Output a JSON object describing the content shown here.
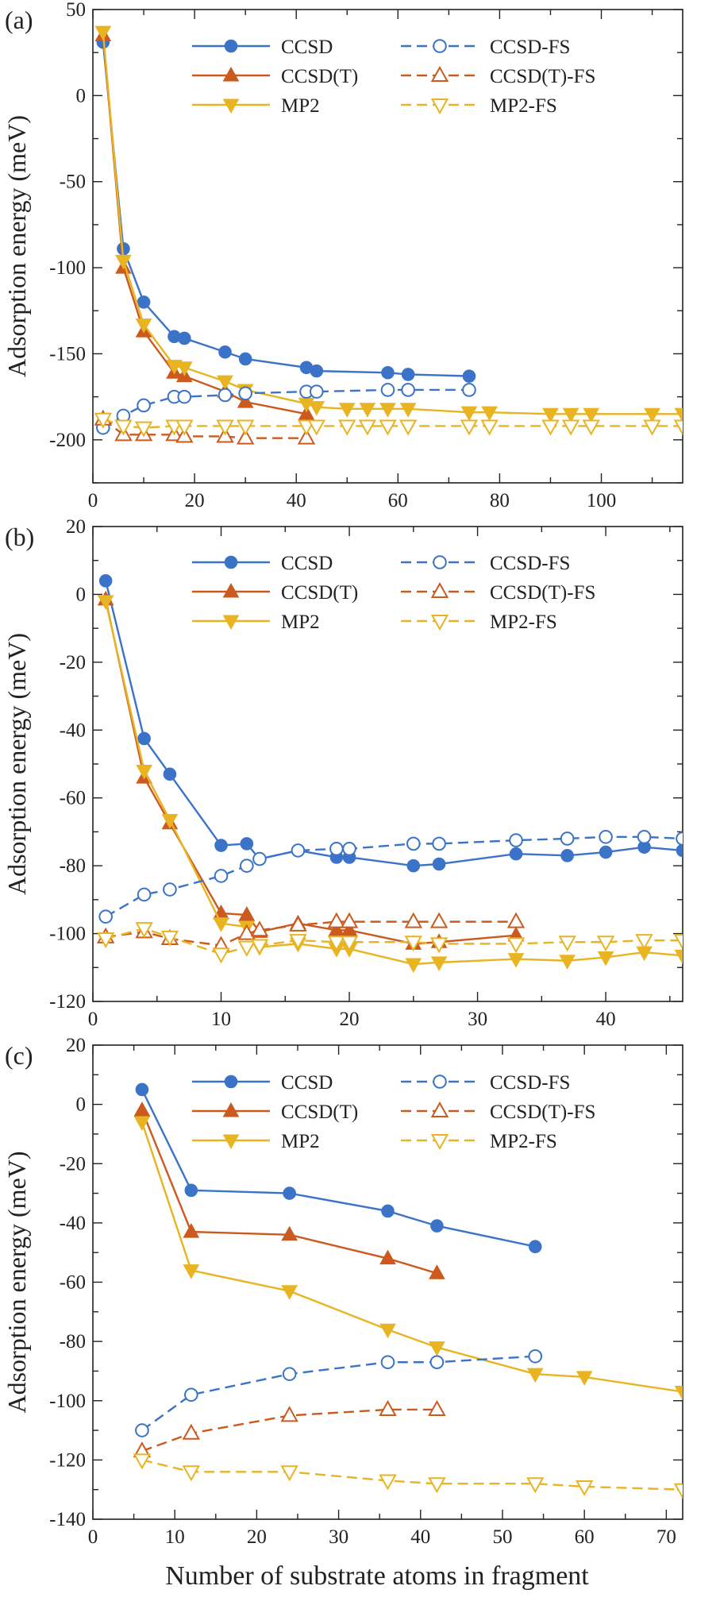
{
  "colors": {
    "ccsd": "#3b73c8",
    "ccsdt": "#cc5a1e",
    "mp2": "#e8b422",
    "axis": "#222222"
  },
  "xlabel": "Number of substrate atoms in fragment",
  "chart_data": [
    {
      "type": "line",
      "panel_label": "(a)",
      "ylabel": "Adsorption energy (meV)",
      "xlim": [
        0,
        116
      ],
      "ylim": [
        -225,
        50
      ],
      "xticks": [
        0,
        20,
        40,
        60,
        80,
        100
      ],
      "yticks": [
        -200,
        -150,
        -100,
        -50,
        0,
        50
      ],
      "legend": "top-right",
      "series": [
        {
          "name": "CCSD",
          "key": "ccsd",
          "marker": "circle",
          "filled": true,
          "dashed": false,
          "x": [
            2,
            6,
            10,
            16,
            18,
            26,
            30,
            42,
            44,
            58,
            62,
            74
          ],
          "y": [
            31,
            -89,
            -120,
            -140,
            -141,
            -149,
            -153,
            -158,
            -160,
            -161,
            -162,
            -163
          ]
        },
        {
          "name": "CCSD(T)",
          "key": "ccsdt",
          "marker": "tri-up",
          "filled": true,
          "dashed": false,
          "x": [
            2,
            6,
            10,
            16,
            18,
            26,
            30,
            42
          ],
          "y": [
            35,
            -100,
            -137,
            -161,
            -163,
            -172,
            -178,
            -185
          ]
        },
        {
          "name": "MP2",
          "key": "mp2",
          "marker": "tri-down",
          "filled": true,
          "dashed": false,
          "x": [
            2,
            6,
            10,
            16,
            18,
            26,
            30,
            42,
            44,
            50,
            54,
            58,
            62,
            74,
            78,
            90,
            94,
            98,
            110,
            116
          ],
          "y": [
            37,
            -96,
            -133,
            -157,
            -158,
            -166,
            -171,
            -179,
            -181,
            -182,
            -182,
            -182,
            -182,
            -184,
            -184,
            -185,
            -185,
            -185,
            -185,
            -185
          ]
        },
        {
          "name": "CCSD-FS",
          "key": "ccsd",
          "marker": "circle",
          "filled": false,
          "dashed": true,
          "x": [
            2,
            6,
            10,
            16,
            18,
            26,
            30,
            42,
            44,
            58,
            62,
            74
          ],
          "y": [
            -193,
            -186,
            -180,
            -175,
            -175,
            -174,
            -173,
            -172,
            -172,
            -171,
            -171,
            -171
          ]
        },
        {
          "name": "CCSD(T)-FS",
          "key": "ccsdt",
          "marker": "tri-up",
          "filled": false,
          "dashed": true,
          "x": [
            2,
            6,
            10,
            16,
            18,
            26,
            30,
            42
          ],
          "y": [
            -188,
            -197,
            -197,
            -197,
            -198,
            -198,
            -199,
            -199
          ]
        },
        {
          "name": "MP2-FS",
          "key": "mp2",
          "marker": "tri-down",
          "filled": false,
          "dashed": true,
          "x": [
            2,
            6,
            10,
            16,
            18,
            26,
            30,
            42,
            44,
            50,
            54,
            58,
            62,
            74,
            78,
            90,
            94,
            98,
            110,
            116
          ],
          "y": [
            -188,
            -192,
            -193,
            -192,
            -192,
            -192,
            -192,
            -192,
            -192,
            -192,
            -192,
            -192,
            -192,
            -192,
            -192,
            -192,
            -192,
            -192,
            -192,
            -192
          ]
        }
      ]
    },
    {
      "type": "line",
      "panel_label": "(b)",
      "ylabel": "Adsorption energy (meV)",
      "xlim": [
        0,
        46
      ],
      "ylim": [
        -120,
        20
      ],
      "xticks": [
        0,
        10,
        20,
        30,
        40
      ],
      "yticks": [
        -120,
        -100,
        -80,
        -60,
        -40,
        -20,
        0,
        20
      ],
      "legend": "top-right",
      "series": [
        {
          "name": "CCSD",
          "key": "ccsd",
          "marker": "circle",
          "filled": true,
          "dashed": false,
          "x": [
            1,
            4,
            6,
            10,
            12,
            13,
            16,
            19,
            20,
            25,
            27,
            33,
            37,
            40,
            43,
            46
          ],
          "y": [
            4,
            -42.5,
            -53,
            -74,
            -73.5,
            -78,
            -75.5,
            -77.5,
            -77.5,
            -80,
            -79.5,
            -76.5,
            -77,
            -76,
            -74.5,
            -75.5
          ]
        },
        {
          "name": "CCSD(T)",
          "key": "ccsdt",
          "marker": "tri-up",
          "filled": true,
          "dashed": false,
          "x": [
            1,
            4,
            6,
            10,
            12,
            13,
            16,
            19,
            20,
            25,
            27,
            33
          ],
          "y": [
            -1.5,
            -54,
            -67.5,
            -94,
            -94.5,
            -99.5,
            -97,
            -99,
            -99,
            -103,
            -102.5,
            -100.5
          ]
        },
        {
          "name": "MP2",
          "key": "mp2",
          "marker": "tri-down",
          "filled": true,
          "dashed": false,
          "x": [
            1,
            4,
            6,
            10,
            12,
            13,
            16,
            19,
            20,
            25,
            27,
            33,
            37,
            40,
            43,
            46
          ],
          "y": [
            -2,
            -52,
            -66.5,
            -97,
            -98,
            -104,
            -103,
            -104.5,
            -104.5,
            -109,
            -108.5,
            -107.5,
            -108,
            -107,
            -105.5,
            -106.5
          ]
        },
        {
          "name": "CCSD-FS",
          "key": "ccsd",
          "marker": "circle",
          "filled": false,
          "dashed": true,
          "x": [
            1,
            4,
            6,
            10,
            12,
            13,
            16,
            19,
            20,
            25,
            27,
            33,
            37,
            40,
            43,
            46
          ],
          "y": [
            -95,
            -88.5,
            -87,
            -83,
            -80,
            -78,
            -75.5,
            -75,
            -75,
            -73.5,
            -73.5,
            -72.5,
            -72,
            -71.5,
            -71.5,
            -72
          ]
        },
        {
          "name": "CCSD(T)-FS",
          "key": "ccsdt",
          "marker": "tri-up",
          "filled": false,
          "dashed": true,
          "x": [
            1,
            4,
            6,
            10,
            12,
            13,
            16,
            19,
            20,
            25,
            27,
            33
          ],
          "y": [
            -101,
            -99.5,
            -101.5,
            -103.5,
            -100,
            -99,
            -97.5,
            -96.5,
            -96.5,
            -96.5,
            -96.5,
            -96.5
          ]
        },
        {
          "name": "MP2-FS",
          "key": "mp2",
          "marker": "tri-down",
          "filled": false,
          "dashed": true,
          "x": [
            1,
            4,
            6,
            10,
            12,
            13,
            16,
            19,
            20,
            25,
            27,
            33,
            37,
            40,
            43,
            46
          ],
          "y": [
            -101.5,
            -98.5,
            -101,
            -106,
            -104,
            -103.5,
            -102,
            -102.5,
            -102.5,
            -102.5,
            -103,
            -103,
            -102.5,
            -102.5,
            -102,
            -102
          ]
        }
      ]
    },
    {
      "type": "line",
      "panel_label": "(c)",
      "ylabel": "Adsorption energy (meV)",
      "xlim": [
        0,
        72
      ],
      "ylim": [
        -140,
        20
      ],
      "xticks": [
        0,
        10,
        20,
        30,
        40,
        50,
        60,
        70
      ],
      "yticks": [
        -140,
        -120,
        -100,
        -80,
        -60,
        -40,
        -20,
        0,
        20
      ],
      "legend": "top-right",
      "series": [
        {
          "name": "CCSD",
          "key": "ccsd",
          "marker": "circle",
          "filled": true,
          "dashed": false,
          "x": [
            6,
            12,
            24,
            36,
            42,
            54
          ],
          "y": [
            5,
            -29,
            -30,
            -36,
            -41,
            -48
          ]
        },
        {
          "name": "CCSD(T)",
          "key": "ccsdt",
          "marker": "tri-up",
          "filled": true,
          "dashed": false,
          "x": [
            6,
            12,
            24,
            36,
            42
          ],
          "y": [
            -2,
            -43,
            -44,
            -52,
            -57
          ]
        },
        {
          "name": "MP2",
          "key": "mp2",
          "marker": "tri-down",
          "filled": true,
          "dashed": false,
          "x": [
            6,
            12,
            24,
            36,
            42,
            54,
            60,
            72
          ],
          "y": [
            -6,
            -56,
            -63,
            -76,
            -82,
            -91,
            -92,
            -97
          ]
        },
        {
          "name": "CCSD-FS",
          "key": "ccsd",
          "marker": "circle",
          "filled": false,
          "dashed": true,
          "x": [
            6,
            12,
            24,
            36,
            42,
            54
          ],
          "y": [
            -110,
            -98,
            -91,
            -87,
            -87,
            -85
          ]
        },
        {
          "name": "CCSD(T)-FS",
          "key": "ccsdt",
          "marker": "tri-up",
          "filled": false,
          "dashed": true,
          "x": [
            6,
            12,
            24,
            36,
            42
          ],
          "y": [
            -117,
            -111,
            -105,
            -103,
            -103
          ]
        },
        {
          "name": "MP2-FS",
          "key": "mp2",
          "marker": "tri-down",
          "filled": false,
          "dashed": true,
          "x": [
            6,
            12,
            24,
            36,
            42,
            54,
            60,
            72
          ],
          "y": [
            -120,
            -124,
            -124,
            -127,
            -128,
            -128,
            -129,
            -130
          ]
        }
      ]
    }
  ]
}
